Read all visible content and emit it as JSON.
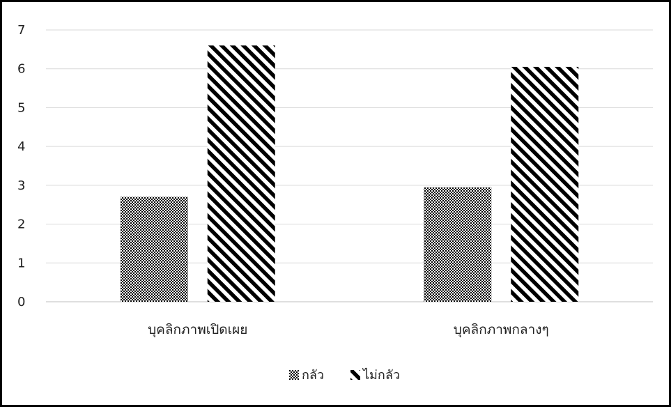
{
  "chart_data": {
    "type": "bar",
    "title": "",
    "xlabel": "",
    "ylabel": "",
    "categories": [
      "บุคลิกภาพเปิดเผย",
      "บุคลิกภาพกลางๆ"
    ],
    "series": [
      {
        "name": "กลัว",
        "values": [
          2.7,
          2.95
        ],
        "pattern": "checker"
      },
      {
        "name": "ไม่กลัว",
        "values": [
          6.6,
          6.05
        ],
        "pattern": "diagonal-stripes"
      }
    ],
    "yticks": [
      "0",
      "1",
      "2",
      "3",
      "4",
      "5",
      "6",
      "7"
    ],
    "ylim": [
      0,
      7
    ],
    "grid": true,
    "legend_position": "bottom-center",
    "colors": {
      "ink": "#000000",
      "paper": "#ffffff",
      "grid": "#d9d9d9",
      "text": "#222222"
    }
  }
}
